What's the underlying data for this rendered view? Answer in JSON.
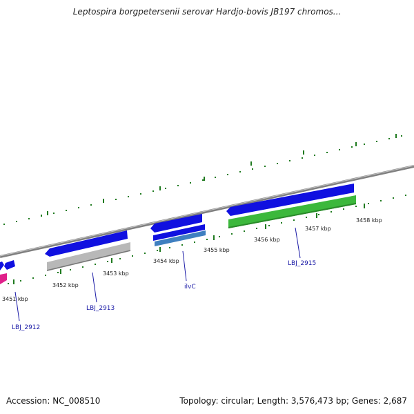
{
  "title": "Leptospira borgpetersenii serovar Hardjo-bovis JB197 chromos...",
  "footer": {
    "accession": "Accession: NC_008510",
    "summary": "Topology: circular; Length: 3,576,473 bp; Genes: 2,687"
  },
  "colors": {
    "gene_forward": "#1010e0",
    "gene_gray": "#b8b8b8",
    "gene_green": "#3cb83c",
    "gene_pink": "#e0208a",
    "gene_steelblue": "#3f7fc0",
    "tick": "#1f7a1f",
    "backbone": "#8a8a8a",
    "label": "#1a1aa6"
  },
  "kbp_labels": [
    "3451 kbp",
    "3452 kbp",
    "3453 kbp",
    "3454 kbp",
    "3455 kbp",
    "3456 kbp",
    "3457 kbp",
    "3458 kbp"
  ],
  "gene_labels": [
    "LBJ_2912",
    "LBJ_2913",
    "ilvC",
    "LBJ_2915"
  ]
}
